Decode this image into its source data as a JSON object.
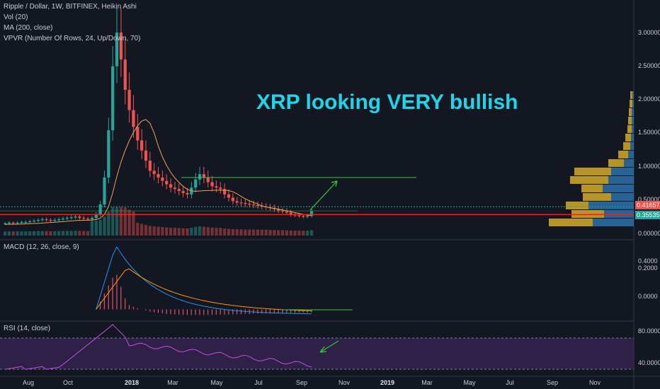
{
  "legend": {
    "title": "Ripple / Dollar, 1W, BITFINEX, Heikin Ashi",
    "vol": "Vol (20)",
    "ma": "MA (200, close)",
    "vpvr": "VPVR (Number Of Rows, 24, Up/Down, 70)"
  },
  "annotation": "XRP looking VERY bullish",
  "macd_label": "MACD (12, 26, close, 9)",
  "rsi_label": "RSI (14, close)",
  "price_axis": [
    "3.00000",
    "2.50000",
    "2.00000",
    "1.50000",
    "1.00000",
    "0.50000",
    "0.00000"
  ],
  "price_badges": [
    {
      "text": "0.41657",
      "color": "#ef5350"
    },
    {
      "text": "0.35535",
      "color": "#26a69a"
    }
  ],
  "macd_axis": [
    "0.4000",
    "0.2000",
    "0.0000"
  ],
  "rsi_axis": [
    "80.0000",
    "40.0000"
  ],
  "x_axis": [
    {
      "text": "Aug",
      "bold": false
    },
    {
      "text": "Oct",
      "bold": false
    },
    {
      "text": "2018",
      "bold": true
    },
    {
      "text": "Mar",
      "bold": false
    },
    {
      "text": "May",
      "bold": false
    },
    {
      "text": "Jul",
      "bold": false
    },
    {
      "text": "Sep",
      "bold": false
    },
    {
      "text": "Nov",
      "bold": false
    },
    {
      "text": "2019",
      "bold": true
    },
    {
      "text": "Mar",
      "bold": false
    },
    {
      "text": "May",
      "bold": false
    },
    {
      "text": "Jul",
      "bold": false
    },
    {
      "text": "Sep",
      "bold": false
    },
    {
      "text": "Nov",
      "bold": false
    }
  ],
  "chart_data": {
    "type": "candlestick",
    "symbol": "XRPUSD",
    "interval": "1W",
    "candles_close": [
      0.17,
      0.18,
      0.17,
      0.18,
      0.19,
      0.19,
      0.2,
      0.21,
      0.22,
      0.23,
      0.22,
      0.21,
      0.22,
      0.23,
      0.24,
      0.25,
      0.26,
      0.27,
      0.25,
      0.24,
      0.23,
      0.25,
      0.3,
      0.45,
      0.85,
      1.55,
      2.5,
      3.0,
      2.6,
      2.15,
      1.85,
      1.6,
      1.4,
      1.25,
      1.1,
      0.95,
      0.9,
      0.85,
      0.8,
      0.75,
      0.7,
      0.68,
      0.65,
      0.62,
      0.6,
      0.7,
      0.82,
      0.9,
      0.85,
      0.78,
      0.72,
      0.7,
      0.68,
      0.6,
      0.55,
      0.5,
      0.48,
      0.47,
      0.46,
      0.45,
      0.44,
      0.43,
      0.42,
      0.41,
      0.4,
      0.38,
      0.36,
      0.35,
      0.33,
      0.3,
      0.29,
      0.28,
      0.27,
      0.28,
      0.35
    ],
    "current_price": 0.41657,
    "support_level": 0.3,
    "resistance_level": 0.85,
    "y_range": [
      0,
      3.2
    ],
    "macd": {
      "range": [
        -0.1,
        0.4
      ],
      "peak": 0.4
    },
    "rsi": {
      "range": [
        20,
        100
      ],
      "upper_band": 70,
      "lower_band": 30,
      "peak": 93
    }
  }
}
